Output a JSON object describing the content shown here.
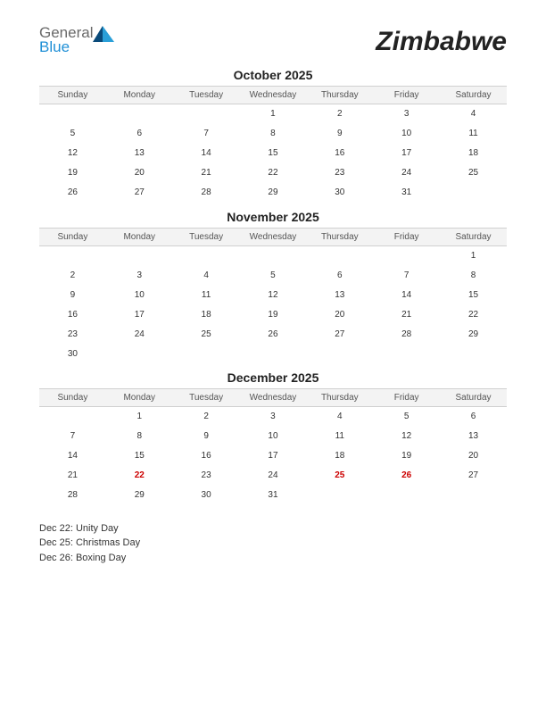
{
  "logo": {
    "general": "General",
    "blue": "Blue"
  },
  "country": "Zimbabwe",
  "day_headers": [
    "Sunday",
    "Monday",
    "Tuesday",
    "Wednesday",
    "Thursday",
    "Friday",
    "Saturday"
  ],
  "colors": {
    "background": "#ffffff",
    "text": "#333333",
    "header_bg": "#f3f3f3",
    "header_border": "#d0d0d0",
    "holiday": "#cc0000",
    "logo_gray": "#6a6a6a",
    "logo_blue": "#1f8fd6",
    "logo_icon_dark": "#0a4a7a",
    "logo_icon_light": "#2a9fd8"
  },
  "typography": {
    "country_fontsize": 30,
    "country_weight": 700,
    "country_italic": true,
    "month_title_fontsize": 14,
    "month_title_weight": 700,
    "day_header_fontsize": 10,
    "cell_fontsize": 10,
    "holiday_list_fontsize": 11
  },
  "months": [
    {
      "title": "October 2025",
      "weeks": [
        [
          "",
          "",
          "",
          "1",
          "2",
          "3",
          "4"
        ],
        [
          "5",
          "6",
          "7",
          "8",
          "9",
          "10",
          "11"
        ],
        [
          "12",
          "13",
          "14",
          "15",
          "16",
          "17",
          "18"
        ],
        [
          "19",
          "20",
          "21",
          "22",
          "23",
          "24",
          "25"
        ],
        [
          "26",
          "27",
          "28",
          "29",
          "30",
          "31",
          ""
        ]
      ],
      "holidays": []
    },
    {
      "title": "November 2025",
      "weeks": [
        [
          "",
          "",
          "",
          "",
          "",
          "",
          "1"
        ],
        [
          "2",
          "3",
          "4",
          "5",
          "6",
          "7",
          "8"
        ],
        [
          "9",
          "10",
          "11",
          "12",
          "13",
          "14",
          "15"
        ],
        [
          "16",
          "17",
          "18",
          "19",
          "20",
          "21",
          "22"
        ],
        [
          "23",
          "24",
          "25",
          "26",
          "27",
          "28",
          "29"
        ],
        [
          "30",
          "",
          "",
          "",
          "",
          "",
          ""
        ]
      ],
      "holidays": []
    },
    {
      "title": "December 2025",
      "weeks": [
        [
          "",
          "1",
          "2",
          "3",
          "4",
          "5",
          "6"
        ],
        [
          "7",
          "8",
          "9",
          "10",
          "11",
          "12",
          "13"
        ],
        [
          "14",
          "15",
          "16",
          "17",
          "18",
          "19",
          "20"
        ],
        [
          "21",
          "22",
          "23",
          "24",
          "25",
          "26",
          "27"
        ],
        [
          "28",
          "29",
          "30",
          "31",
          "",
          "",
          ""
        ]
      ],
      "holidays": [
        "22",
        "25",
        "26"
      ]
    }
  ],
  "holiday_list": [
    "Dec 22: Unity Day",
    "Dec 25: Christmas Day",
    "Dec 26: Boxing Day"
  ]
}
